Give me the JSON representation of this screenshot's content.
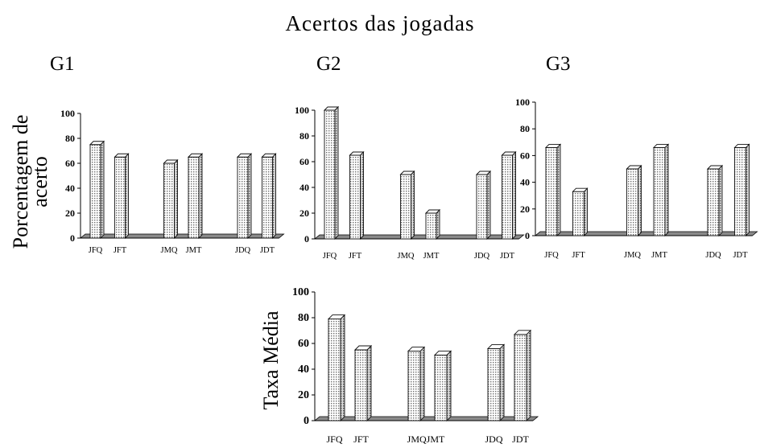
{
  "title": "Acertos das jogadas",
  "ylabels": {
    "top": [
      "Porcentagem de",
      "acerto"
    ],
    "bottom": "Taxa Média"
  },
  "colors": {
    "bar_fill": "#ffffff",
    "bar_pattern": "#6e6e6e",
    "bar_edge": "#111111",
    "floor": "#8a8a8a",
    "axis": "#000000"
  },
  "chart_data": [
    {
      "type": "bar",
      "title": "G1",
      "categories": [
        "JFQ",
        "JFT",
        "",
        "JMQ",
        "JMT",
        "",
        "JDQ",
        "JDT"
      ],
      "values": [
        75,
        65,
        null,
        60,
        65,
        null,
        65,
        65
      ],
      "ylim": [
        0,
        100
      ],
      "yticks": [
        0,
        20,
        40,
        60,
        80,
        100
      ],
      "style": "3d"
    },
    {
      "type": "bar",
      "title": "G2",
      "categories": [
        "JFQ",
        "JFT",
        "",
        "JMQ",
        "JMT",
        "",
        "JDQ",
        "JDT"
      ],
      "values": [
        100,
        65,
        null,
        50,
        20,
        null,
        50,
        65
      ],
      "ylim": [
        0,
        100
      ],
      "yticks": [
        0,
        20,
        40,
        60,
        80,
        100
      ],
      "style": "3d"
    },
    {
      "type": "bar",
      "title": "G3",
      "categories": [
        "JFQ",
        "JFT",
        "",
        "JMQ",
        "JMT",
        "",
        "JDQ",
        "JDT"
      ],
      "values": [
        66,
        33,
        null,
        50,
        66,
        null,
        50,
        66
      ],
      "ylim": [
        0,
        100
      ],
      "yticks": [
        0,
        20,
        40,
        60,
        80,
        100
      ],
      "style": "3d"
    },
    {
      "type": "bar",
      "title": "",
      "categories": [
        "JFQ",
        "JFT",
        "",
        "JMQ",
        "JMT",
        "",
        "JDQ",
        "JDT"
      ],
      "xtick_labels": [
        "JFQ",
        "JFT",
        "",
        "JMQJMT",
        "",
        "",
        "JDQ",
        "JDT"
      ],
      "values": [
        79,
        55,
        null,
        54,
        51,
        null,
        56,
        67
      ],
      "ylim": [
        0,
        100
      ],
      "yticks": [
        0,
        20,
        40,
        60,
        80,
        100
      ],
      "style": "3d"
    }
  ]
}
